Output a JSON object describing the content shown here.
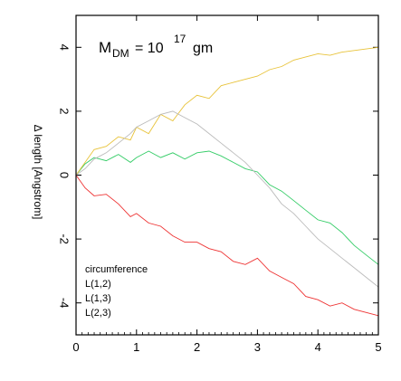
{
  "chart_data": {
    "type": "line",
    "title": "",
    "annotation": {
      "text": "M",
      "subscript": "DM",
      "equals": "= 10",
      "exponent": "17",
      "unit": "gm"
    },
    "xlabel": "",
    "ylabel": "Δ length [Angstrom]",
    "xlim": [
      0,
      5
    ],
    "ylim": [
      -5,
      5
    ],
    "x_ticks": [
      0,
      1,
      2,
      3,
      4,
      5
    ],
    "y_ticks": [
      -4,
      -2,
      0,
      2,
      4
    ],
    "grid": false,
    "legend_position": "bottom-left",
    "legend_title": "circumference",
    "series": [
      {
        "name": "L(1,2)",
        "color": "#ee3333",
        "x": [
          0.0,
          0.15,
          0.3,
          0.5,
          0.7,
          0.9,
          1.0,
          1.2,
          1.4,
          1.6,
          1.8,
          2.0,
          2.2,
          2.4,
          2.6,
          2.8,
          3.0,
          3.2,
          3.4,
          3.6,
          3.8,
          4.0,
          4.2,
          4.4,
          4.6,
          4.8,
          5.0
        ],
        "y": [
          0.0,
          -0.4,
          -0.65,
          -0.6,
          -0.9,
          -1.3,
          -1.2,
          -1.5,
          -1.6,
          -1.9,
          -2.1,
          -2.1,
          -2.3,
          -2.4,
          -2.7,
          -2.8,
          -2.6,
          -3.0,
          -3.2,
          -3.4,
          -3.8,
          -3.9,
          -4.1,
          -4.0,
          -4.2,
          -4.3,
          -4.4
        ]
      },
      {
        "name": "L(1,3)",
        "color": "#33cc66",
        "x": [
          0.0,
          0.15,
          0.3,
          0.5,
          0.7,
          0.9,
          1.0,
          1.2,
          1.4,
          1.6,
          1.8,
          2.0,
          2.2,
          2.4,
          2.6,
          2.8,
          3.0,
          3.2,
          3.4,
          3.6,
          3.8,
          4.0,
          4.2,
          4.4,
          4.6,
          4.8,
          5.0
        ],
        "y": [
          0.0,
          0.35,
          0.55,
          0.45,
          0.65,
          0.4,
          0.55,
          0.75,
          0.55,
          0.7,
          0.5,
          0.7,
          0.75,
          0.6,
          0.4,
          0.2,
          0.1,
          -0.3,
          -0.5,
          -0.8,
          -1.1,
          -1.4,
          -1.5,
          -1.8,
          -2.2,
          -2.5,
          -2.8
        ]
      },
      {
        "name": "L(2,3)",
        "color": "#e8c33a",
        "x": [
          0.0,
          0.15,
          0.3,
          0.5,
          0.7,
          0.9,
          1.0,
          1.2,
          1.4,
          1.6,
          1.8,
          2.0,
          2.2,
          2.4,
          2.6,
          2.8,
          3.0,
          3.2,
          3.4,
          3.6,
          3.8,
          4.0,
          4.2,
          4.4,
          4.6,
          4.8,
          5.0
        ],
        "y": [
          0.0,
          0.4,
          0.8,
          0.9,
          1.2,
          1.1,
          1.5,
          1.3,
          1.9,
          1.7,
          2.2,
          2.5,
          2.4,
          2.8,
          2.9,
          3.0,
          3.1,
          3.3,
          3.4,
          3.6,
          3.7,
          3.8,
          3.75,
          3.85,
          3.9,
          3.95,
          4.0
        ]
      },
      {
        "name": "",
        "color": "#bbbbbb",
        "x": [
          0.0,
          0.15,
          0.3,
          0.5,
          0.7,
          0.9,
          1.0,
          1.2,
          1.4,
          1.6,
          1.8,
          2.0,
          2.2,
          2.4,
          2.6,
          2.8,
          3.0,
          3.2,
          3.4,
          3.6,
          3.8,
          4.0,
          4.2,
          4.4,
          4.6,
          4.8,
          5.0
        ],
        "y": [
          0.0,
          0.2,
          0.5,
          0.7,
          1.0,
          1.3,
          1.5,
          1.7,
          1.9,
          2.0,
          1.8,
          1.6,
          1.3,
          1.0,
          0.7,
          0.4,
          0.0,
          -0.4,
          -0.9,
          -1.2,
          -1.6,
          -2.0,
          -2.3,
          -2.6,
          -2.9,
          -3.2,
          -3.5
        ]
      }
    ]
  }
}
